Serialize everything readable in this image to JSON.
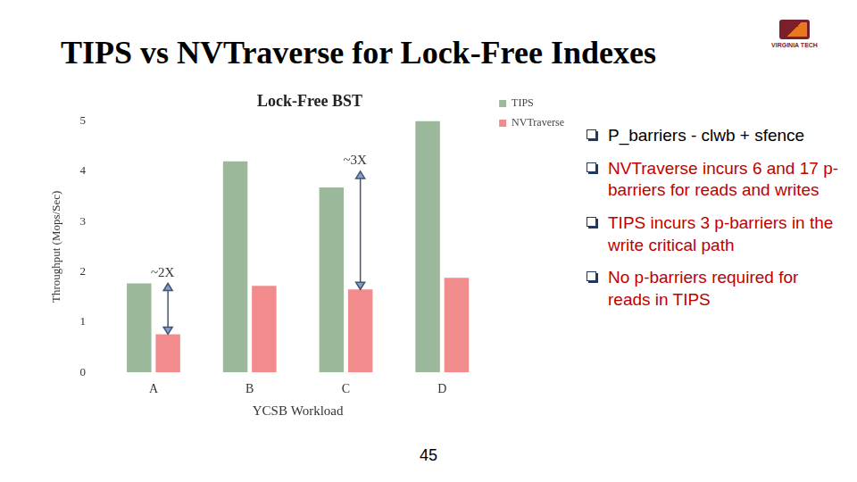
{
  "chart_data": {
    "type": "bar",
    "title": "Lock-Free BST",
    "x_label": "YCSB Workload",
    "y_label": "Throughput (Mops/Sec)",
    "categories": [
      "A",
      "B",
      "C",
      "D"
    ],
    "series": [
      {
        "name": "TIPS",
        "color": "#9bb89a",
        "values": [
          1.77,
          4.2,
          3.68,
          5.0
        ]
      },
      {
        "name": "NVTraverse",
        "color": "#f28b8c",
        "values": [
          0.76,
          1.72,
          1.65,
          1.88
        ]
      }
    ],
    "ylim": [
      0,
      5
    ],
    "yticks": [
      0,
      1,
      2,
      3,
      4,
      5
    ],
    "grid": false,
    "legend": "right",
    "annotations": [
      {
        "text": "~2X",
        "category": "A",
        "series": "NVTraverse",
        "from": 0.76,
        "to": 1.77
      },
      {
        "text": "~3X",
        "category": "C",
        "series": "NVTraverse",
        "from": 1.65,
        "to": 4.0
      }
    ]
  },
  "slide": {
    "title": "TIPS vs NVTraverse for Lock-Free Indexes",
    "logo": "VIRGINIA TECH",
    "bullets": [
      {
        "text": "P_barriers - clwb + sfence",
        "color": "#000000"
      },
      {
        "text": "NVTraverse incurs 6 and 17 p-barriers for reads and writes",
        "color": "#c00000"
      },
      {
        "text": "TIPS incurs 3 p-barriers in the write critical path",
        "color": "#c00000"
      },
      {
        "text": "No p-barriers required for reads in TIPS",
        "color": "#c00000"
      }
    ],
    "page": "45"
  }
}
